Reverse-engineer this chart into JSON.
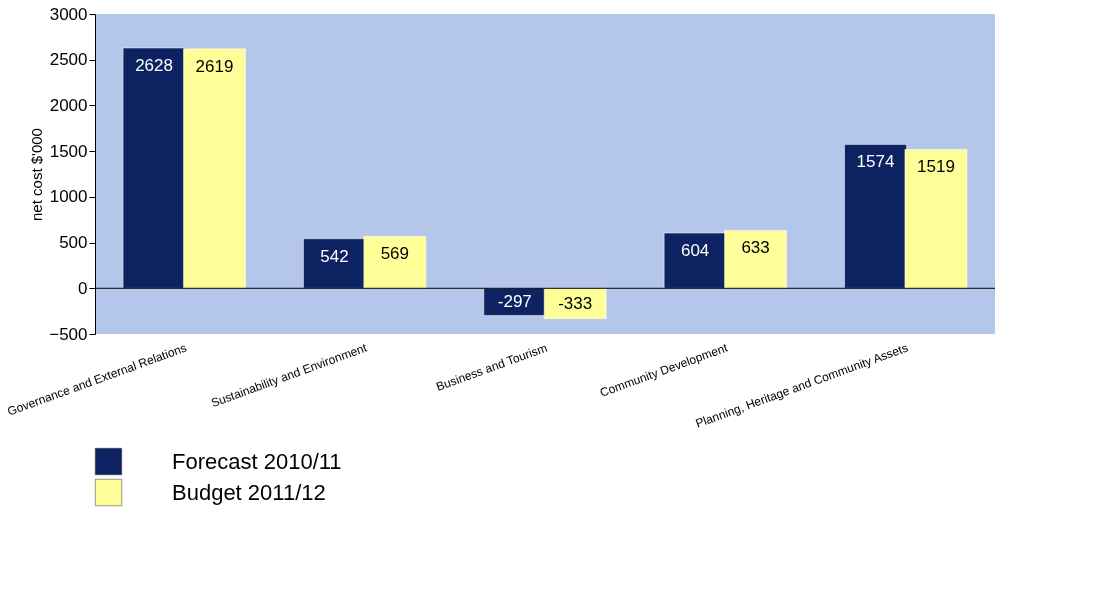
{
  "chart_data": {
    "type": "bar",
    "ylabel": "net cost $'000",
    "categories": [
      "Governance and External Relations",
      "Sustainability and Environment",
      "Business and Tourism",
      "Community Development",
      "Planning, Heritage and Community Assets"
    ],
    "series": [
      {
        "name": "Forecast 2010/11",
        "color": "#0d2260",
        "values": [
          2628,
          542,
          -297,
          604,
          1574
        ]
      },
      {
        "name": "Budget 2011/12",
        "color": "#ffff99",
        "values": [
          2619,
          569,
          -333,
          633,
          1519
        ]
      }
    ],
    "ylim": [
      -500,
      3000
    ],
    "yticks": [
      -500,
      0,
      500,
      1000,
      1500,
      2000,
      2500,
      3000
    ],
    "ref_lines": [
      {
        "axis": "y",
        "value": 0,
        "color": "#000000"
      }
    ],
    "data_labels": true,
    "grid": false,
    "legend": "bottom left"
  }
}
